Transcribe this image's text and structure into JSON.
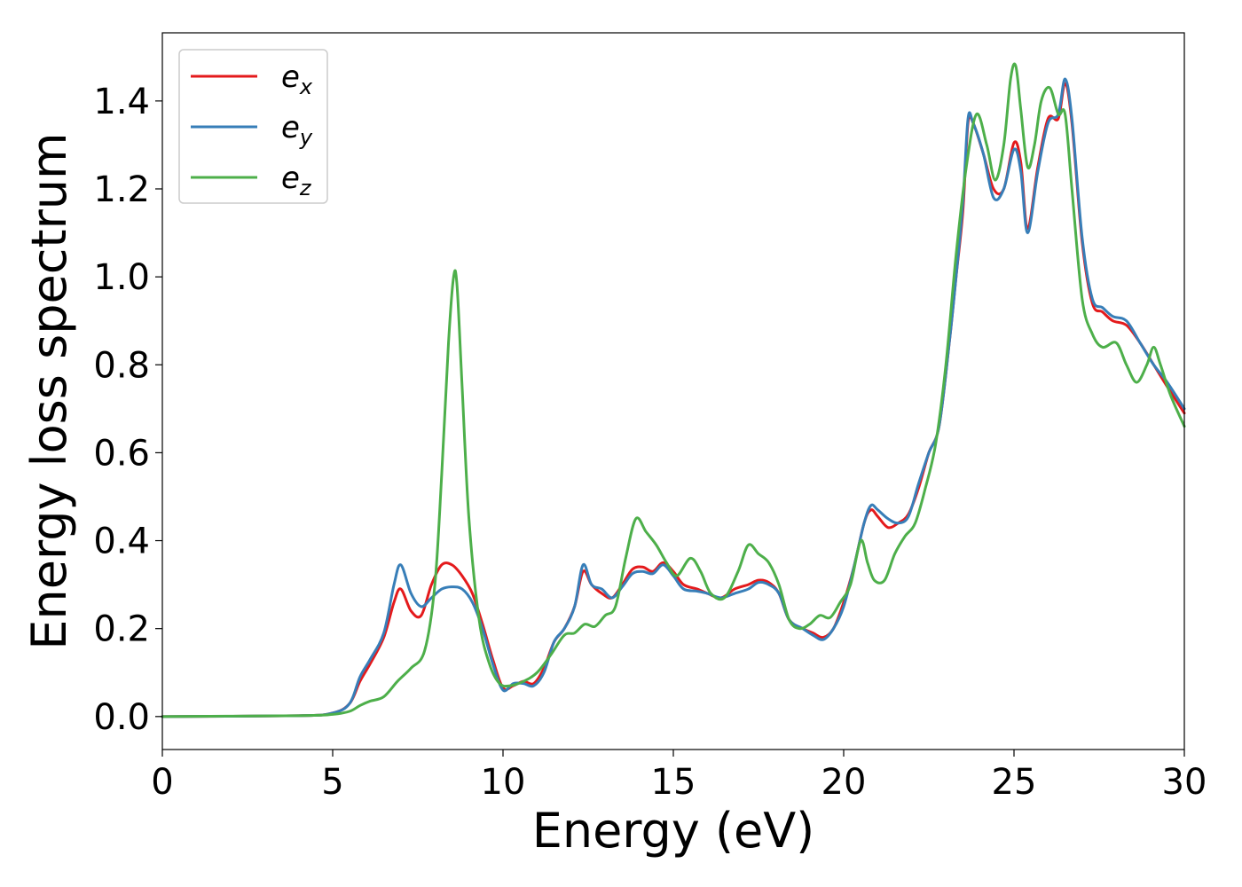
{
  "chart_data": {
    "type": "line",
    "xlabel": "Energy (eV)",
    "ylabel": "Energy loss spectrum",
    "xlim": [
      0,
      30
    ],
    "ylim": [
      -0.075,
      1.555
    ],
    "xticks": [
      0,
      5,
      10,
      15,
      20,
      25,
      30
    ],
    "xtick_labels": [
      "0",
      "5",
      "10",
      "15",
      "20",
      "25",
      "30"
    ],
    "yticks": [
      0.0,
      0.2,
      0.4,
      0.6,
      0.8,
      1.0,
      1.2,
      1.4
    ],
    "ytick_labels": [
      "0.0",
      "0.2",
      "0.4",
      "0.6",
      "0.8",
      "1.0",
      "1.2",
      "1.4"
    ],
    "grid": false,
    "legend_position": "top-left",
    "series": [
      {
        "name": "e",
        "subscript": "x",
        "color": "#e41a1c",
        "x": [
          0,
          4,
          5,
          5.5,
          5.8,
          6.1,
          6.5,
          6.8,
          7.0,
          7.3,
          7.6,
          7.9,
          8.2,
          8.5,
          8.8,
          9.1,
          9.4,
          9.7,
          10.0,
          10.3,
          10.6,
          10.9,
          11.2,
          11.5,
          11.8,
          12.1,
          12.35,
          12.6,
          12.9,
          13.2,
          13.5,
          13.8,
          14.1,
          14.4,
          14.7,
          15.0,
          15.3,
          15.7,
          16.0,
          16.4,
          16.8,
          17.2,
          17.5,
          17.8,
          18.1,
          18.4,
          18.8,
          19.1,
          19.4,
          19.7,
          20.0,
          20.3,
          20.6,
          20.8,
          21.0,
          21.3,
          21.6,
          21.9,
          22.2,
          22.5,
          22.8,
          23.1,
          23.3,
          23.5,
          23.65,
          23.8,
          24.1,
          24.4,
          24.7,
          25.0,
          25.2,
          25.4,
          25.7,
          26.0,
          26.3,
          26.5,
          26.7,
          27.0,
          27.3,
          27.6,
          27.9,
          28.3,
          28.7,
          29.1,
          29.5,
          30.0
        ],
        "y": [
          0,
          0.002,
          0.008,
          0.03,
          0.08,
          0.12,
          0.18,
          0.26,
          0.29,
          0.24,
          0.23,
          0.3,
          0.345,
          0.345,
          0.32,
          0.28,
          0.21,
          0.13,
          0.065,
          0.07,
          0.08,
          0.075,
          0.11,
          0.17,
          0.2,
          0.25,
          0.33,
          0.3,
          0.28,
          0.27,
          0.3,
          0.335,
          0.34,
          0.33,
          0.35,
          0.33,
          0.3,
          0.29,
          0.28,
          0.27,
          0.29,
          0.3,
          0.31,
          0.305,
          0.28,
          0.22,
          0.2,
          0.19,
          0.18,
          0.2,
          0.26,
          0.34,
          0.44,
          0.47,
          0.455,
          0.43,
          0.44,
          0.46,
          0.52,
          0.6,
          0.66,
          0.85,
          1.0,
          1.15,
          1.35,
          1.35,
          1.28,
          1.2,
          1.2,
          1.305,
          1.26,
          1.11,
          1.25,
          1.36,
          1.36,
          1.44,
          1.35,
          1.08,
          0.94,
          0.92,
          0.9,
          0.89,
          0.85,
          0.8,
          0.75,
          0.69
        ]
      },
      {
        "name": "e",
        "subscript": "y",
        "color": "#377eb8",
        "x": [
          0,
          4,
          5,
          5.5,
          5.8,
          6.1,
          6.5,
          6.8,
          7.0,
          7.3,
          7.6,
          7.9,
          8.2,
          8.5,
          8.8,
          9.1,
          9.4,
          9.7,
          10.0,
          10.3,
          10.6,
          10.9,
          11.2,
          11.5,
          11.8,
          12.1,
          12.35,
          12.6,
          12.9,
          13.2,
          13.5,
          13.8,
          14.1,
          14.4,
          14.7,
          15.0,
          15.3,
          15.7,
          16.0,
          16.4,
          16.8,
          17.2,
          17.5,
          17.8,
          18.1,
          18.4,
          18.8,
          19.1,
          19.4,
          19.7,
          20.0,
          20.3,
          20.6,
          20.8,
          21.0,
          21.3,
          21.6,
          21.9,
          22.2,
          22.5,
          22.8,
          23.1,
          23.3,
          23.5,
          23.65,
          23.8,
          24.1,
          24.4,
          24.7,
          25.0,
          25.2,
          25.4,
          25.7,
          26.0,
          26.3,
          26.5,
          26.7,
          27.0,
          27.3,
          27.6,
          27.9,
          28.3,
          28.7,
          29.1,
          29.5,
          30.0
        ],
        "y": [
          0,
          0.002,
          0.008,
          0.03,
          0.09,
          0.13,
          0.19,
          0.3,
          0.345,
          0.28,
          0.25,
          0.27,
          0.29,
          0.295,
          0.29,
          0.26,
          0.2,
          0.12,
          0.06,
          0.075,
          0.075,
          0.07,
          0.1,
          0.17,
          0.2,
          0.25,
          0.345,
          0.3,
          0.29,
          0.27,
          0.295,
          0.325,
          0.33,
          0.325,
          0.345,
          0.32,
          0.29,
          0.285,
          0.28,
          0.27,
          0.28,
          0.29,
          0.305,
          0.3,
          0.28,
          0.22,
          0.2,
          0.185,
          0.175,
          0.2,
          0.25,
          0.34,
          0.44,
          0.48,
          0.47,
          0.45,
          0.44,
          0.455,
          0.53,
          0.6,
          0.66,
          0.85,
          1.0,
          1.17,
          1.36,
          1.35,
          1.28,
          1.18,
          1.2,
          1.29,
          1.24,
          1.1,
          1.24,
          1.35,
          1.37,
          1.45,
          1.36,
          1.09,
          0.95,
          0.93,
          0.91,
          0.9,
          0.85,
          0.8,
          0.76,
          0.7
        ]
      },
      {
        "name": "e",
        "subscript": "z",
        "color": "#4daf4a",
        "x": [
          0,
          4,
          5,
          5.5,
          5.8,
          6.1,
          6.5,
          6.9,
          7.3,
          7.7,
          8.0,
          8.2,
          8.4,
          8.55,
          8.65,
          8.8,
          9.0,
          9.3,
          9.6,
          9.9,
          10.2,
          10.6,
          11.0,
          11.4,
          11.8,
          12.1,
          12.4,
          12.7,
          13.0,
          13.3,
          13.6,
          13.9,
          14.2,
          14.5,
          14.8,
          15.1,
          15.5,
          15.8,
          16.1,
          16.5,
          16.9,
          17.2,
          17.5,
          17.8,
          18.1,
          18.4,
          18.7,
          19.0,
          19.3,
          19.6,
          19.9,
          20.2,
          20.5,
          20.7,
          20.9,
          21.2,
          21.5,
          21.8,
          22.1,
          22.4,
          22.7,
          23.0,
          23.3,
          23.6,
          23.9,
          24.2,
          24.45,
          24.7,
          24.9,
          25.05,
          25.2,
          25.4,
          25.6,
          25.8,
          26.05,
          26.3,
          26.5,
          26.7,
          27.0,
          27.3,
          27.6,
          28.0,
          28.3,
          28.6,
          28.9,
          29.1,
          29.3,
          29.6,
          30.0
        ],
        "y": [
          0,
          0.002,
          0.005,
          0.012,
          0.025,
          0.035,
          0.045,
          0.08,
          0.11,
          0.15,
          0.3,
          0.55,
          0.85,
          1.0,
          0.98,
          0.75,
          0.45,
          0.22,
          0.12,
          0.075,
          0.07,
          0.08,
          0.1,
          0.14,
          0.185,
          0.19,
          0.21,
          0.205,
          0.23,
          0.25,
          0.36,
          0.45,
          0.42,
          0.39,
          0.35,
          0.32,
          0.36,
          0.33,
          0.28,
          0.27,
          0.33,
          0.39,
          0.37,
          0.35,
          0.3,
          0.22,
          0.2,
          0.21,
          0.23,
          0.225,
          0.26,
          0.3,
          0.4,
          0.35,
          0.31,
          0.31,
          0.37,
          0.41,
          0.44,
          0.52,
          0.62,
          0.8,
          1.05,
          1.25,
          1.37,
          1.3,
          1.22,
          1.3,
          1.45,
          1.48,
          1.38,
          1.25,
          1.3,
          1.4,
          1.43,
          1.37,
          1.37,
          1.2,
          0.95,
          0.87,
          0.84,
          0.85,
          0.8,
          0.76,
          0.8,
          0.84,
          0.8,
          0.73,
          0.66
        ]
      }
    ]
  }
}
